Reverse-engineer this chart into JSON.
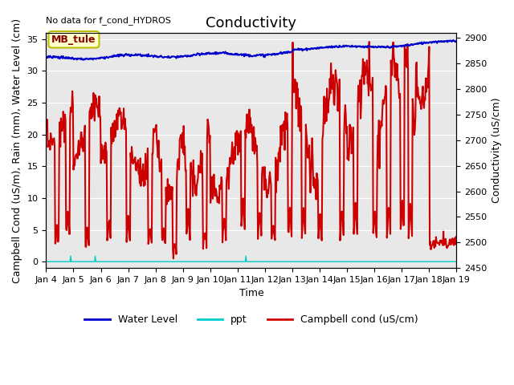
{
  "title": "Conductivity",
  "top_left_text": "No data for f_cond_HYDROS",
  "xlabel": "Time",
  "ylabel_left": "Campbell Cond (uS/m), Rain (mm), Water Level (cm)",
  "ylabel_right": "Conductivity (uS/cm)",
  "ylim_left": [
    -1,
    36
  ],
  "ylim_right": [
    2450,
    2910
  ],
  "xtick_labels": [
    "Jan 4",
    "Jan 5",
    "Jan 6",
    "Jan 7",
    "Jan 8",
    "Jan 9",
    "Jan 10",
    "Jan 11",
    "Jan 12",
    "Jan 13",
    "Jan 14",
    "Jan 15",
    "Jan 16",
    "Jan 17",
    "Jan 18",
    "Jan 19"
  ],
  "yticks_left": [
    0,
    5,
    10,
    15,
    20,
    25,
    30,
    35
  ],
  "yticks_right": [
    2450,
    2500,
    2550,
    2600,
    2650,
    2700,
    2750,
    2800,
    2850,
    2900
  ],
  "legend_labels": [
    "Water Level",
    "ppt",
    "Campbell cond (uS/cm)"
  ],
  "legend_colors": [
    "#0000cc",
    "#00cccc",
    "#cc0000"
  ],
  "box_label": "MB_tule",
  "box_bg": "#ffffcc",
  "box_border": "#bbbb00",
  "plot_bg": "#e8e8e8",
  "grid_color": "#ffffff",
  "water_level_color": "#0000cc",
  "ppt_color": "#00cccc",
  "campbell_color": "#cc0000",
  "water_level_lw": 1.5,
  "campbell_lw": 1.5,
  "ppt_lw": 1.0,
  "title_fontsize": 13,
  "axis_label_fontsize": 9,
  "tick_fontsize": 8,
  "legend_fontsize": 9
}
